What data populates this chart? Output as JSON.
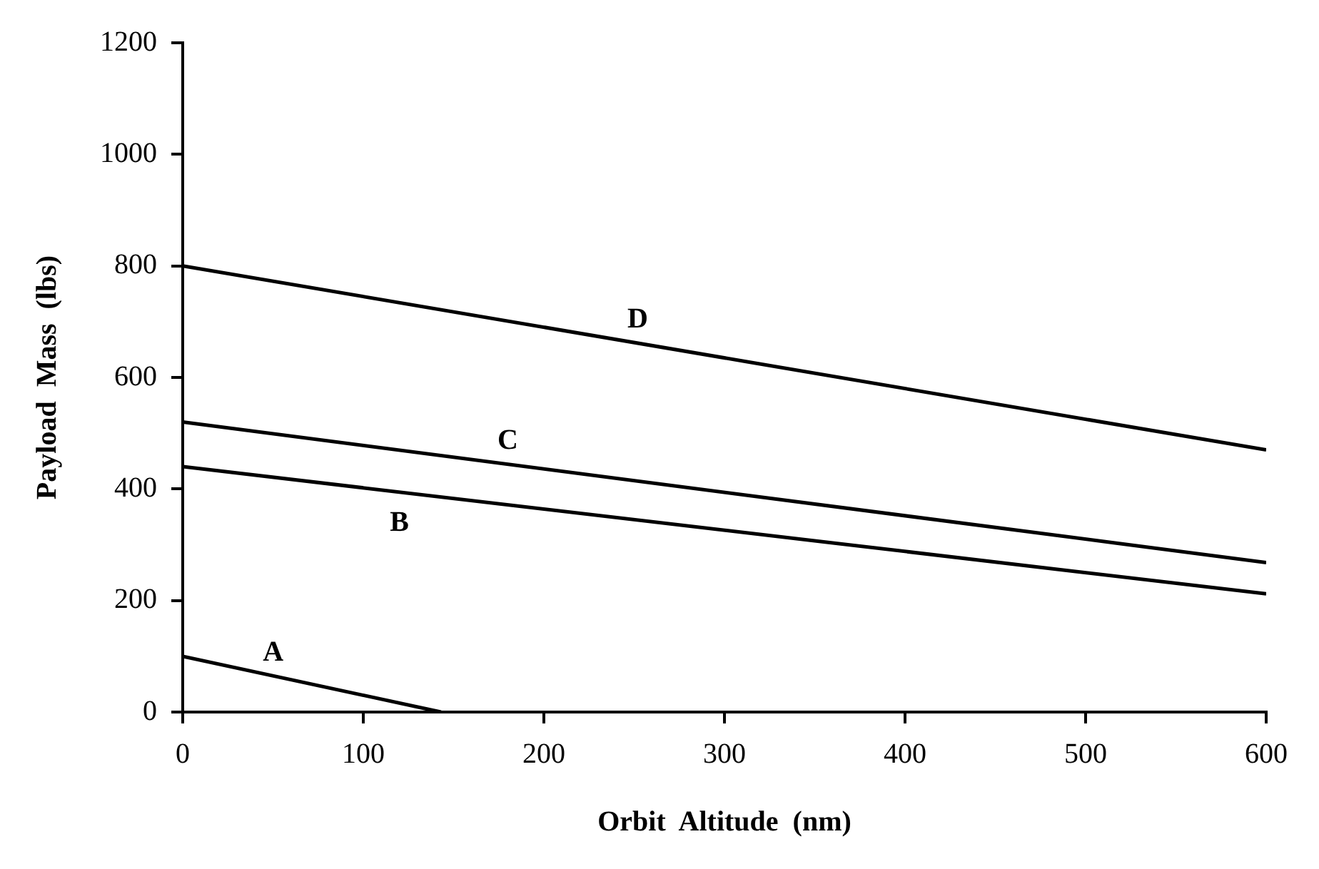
{
  "chart_data": {
    "type": "line",
    "xlabel": "Orbit  Altitude  (nm)",
    "ylabel": "Payload  Mass  (lbs)",
    "xlim": [
      0,
      600
    ],
    "ylim": [
      0,
      1200
    ],
    "xticks": [
      0,
      100,
      200,
      300,
      400,
      500,
      600
    ],
    "yticks": [
      0,
      200,
      400,
      600,
      800,
      1000,
      1200
    ],
    "grid": false,
    "legend": false,
    "marker": "none",
    "line_style": "solid",
    "series": [
      {
        "name": "A",
        "color": "#000000",
        "x": [
          0,
          143
        ],
        "values": [
          100,
          0
        ]
      },
      {
        "name": "B",
        "color": "#000000",
        "x": [
          0,
          600
        ],
        "values": [
          440,
          212
        ]
      },
      {
        "name": "C",
        "color": "#000000",
        "x": [
          0,
          600
        ],
        "values": [
          520,
          268
        ]
      },
      {
        "name": "D",
        "color": "#000000",
        "x": [
          0,
          600
        ],
        "values": [
          800,
          470
        ]
      }
    ]
  }
}
